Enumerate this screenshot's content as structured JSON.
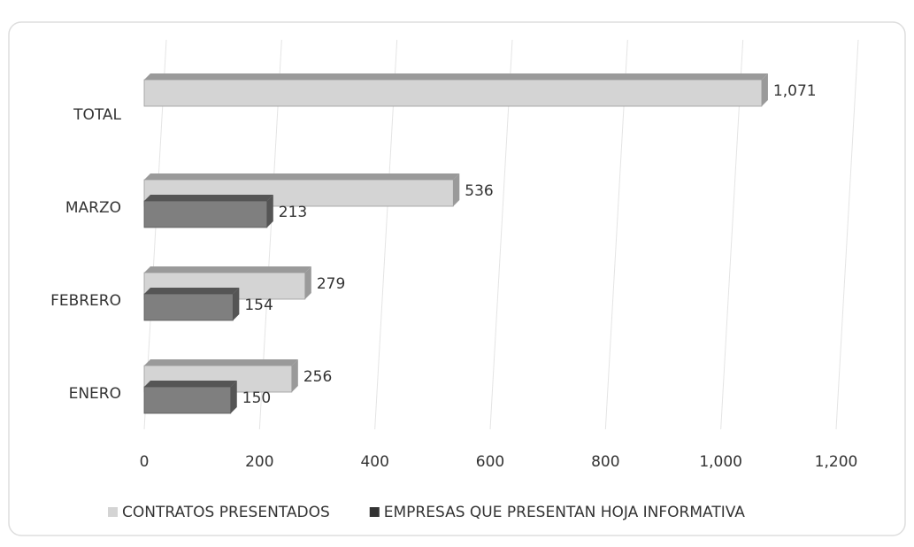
{
  "chart_data": {
    "type": "bar",
    "orientation": "horizontal",
    "categories": [
      "ENERO",
      "FEBRERO",
      "MARZO",
      "TOTAL"
    ],
    "series": [
      {
        "name": "CONTRATOS PRESENTADOS",
        "color": "#d4d4d4",
        "values": [
          256,
          279,
          536,
          1071
        ],
        "value_labels": [
          "256",
          "279",
          "536",
          "1,071"
        ]
      },
      {
        "name": "EMPRESAS QUE PRESENTAN HOJA INFORMATIVA",
        "color": "#7f7f7f",
        "values": [
          150,
          154,
          213,
          null
        ]
      }
    ],
    "xlim": [
      0,
      1200
    ],
    "xticks": [
      0,
      200,
      400,
      600,
      800,
      {
        "value": 1000,
        "label": "1,000"
      },
      {
        "value": 1200,
        "label": "1,200"
      }
    ],
    "grid": true,
    "legend": "bottom"
  }
}
